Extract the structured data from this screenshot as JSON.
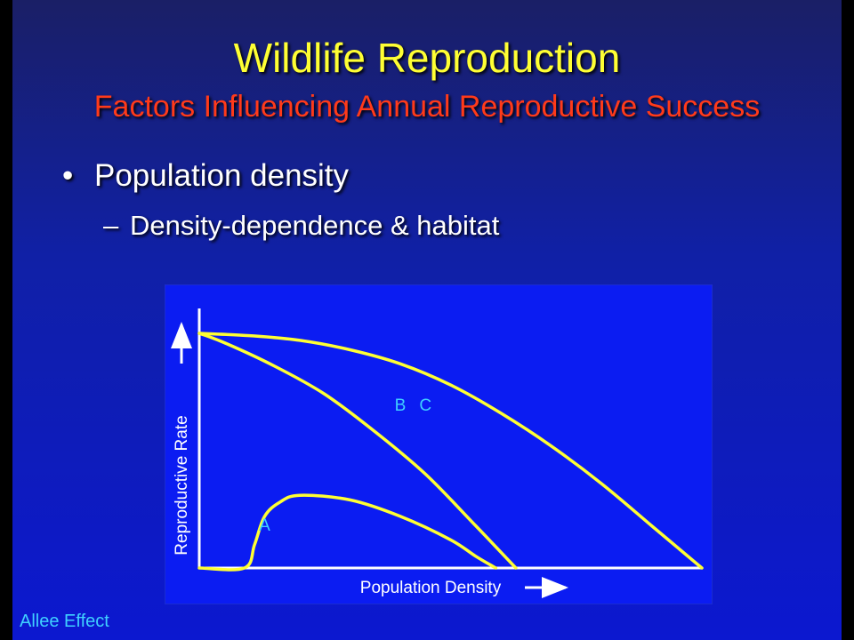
{
  "slide": {
    "title": "Wildlife Reproduction",
    "subtitle": "Factors Influencing Annual Reproductive Success",
    "bullet_symbol": "•",
    "bullet": "Population density",
    "subbullet_symbol": "–",
    "subbullet": "Density-dependence & habitat",
    "footer": "Allee Effect"
  },
  "colors": {
    "title": "#ffff33",
    "subtitle": "#ff3a1a",
    "curve": "#ffff33",
    "curve_label": "#3fd0ff",
    "axis": "#ffffff",
    "panel": "#0b1cf2"
  },
  "chart_data": {
    "type": "line",
    "xlabel": "Population Density",
    "ylabel": "Reproductive Rate",
    "axis_arrows": true,
    "ticks": false,
    "xlim": [
      0,
      100
    ],
    "ylim": [
      0,
      100
    ],
    "series": [
      {
        "name": "A",
        "x": [
          0,
          9,
          11,
          13,
          16,
          20,
          30,
          40,
          50,
          55,
          59
        ],
        "y": [
          0,
          0,
          10,
          22,
          28,
          31,
          29,
          22,
          12,
          5,
          0
        ]
      },
      {
        "name": "B",
        "x": [
          0,
          5,
          15,
          25,
          35,
          45,
          55,
          63
        ],
        "y": [
          100,
          96,
          86,
          74,
          58,
          40,
          18,
          0
        ]
      },
      {
        "name": "C",
        "x": [
          0,
          10,
          20,
          30,
          40,
          50,
          60,
          70,
          80,
          90,
          100
        ],
        "y": [
          100,
          99,
          97,
          93,
          87,
          78,
          66,
          52,
          36,
          18,
          0
        ]
      }
    ]
  }
}
